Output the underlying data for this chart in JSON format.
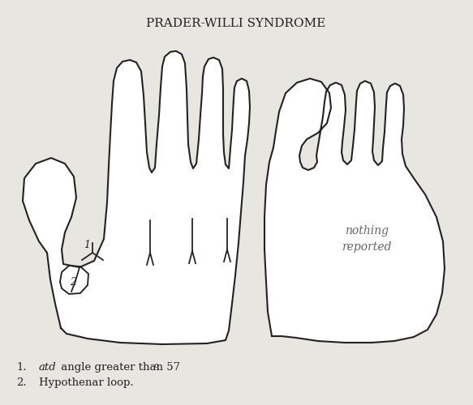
{
  "title": "PRADER-WILLI SYNDROME",
  "title_fontsize": 11,
  "bg_color": "#e8e6e0",
  "line_color": "#222222",
  "line_width": 1.5,
  "nothing_reported": "nothing\nreported",
  "label1": "1",
  "label2": "2"
}
